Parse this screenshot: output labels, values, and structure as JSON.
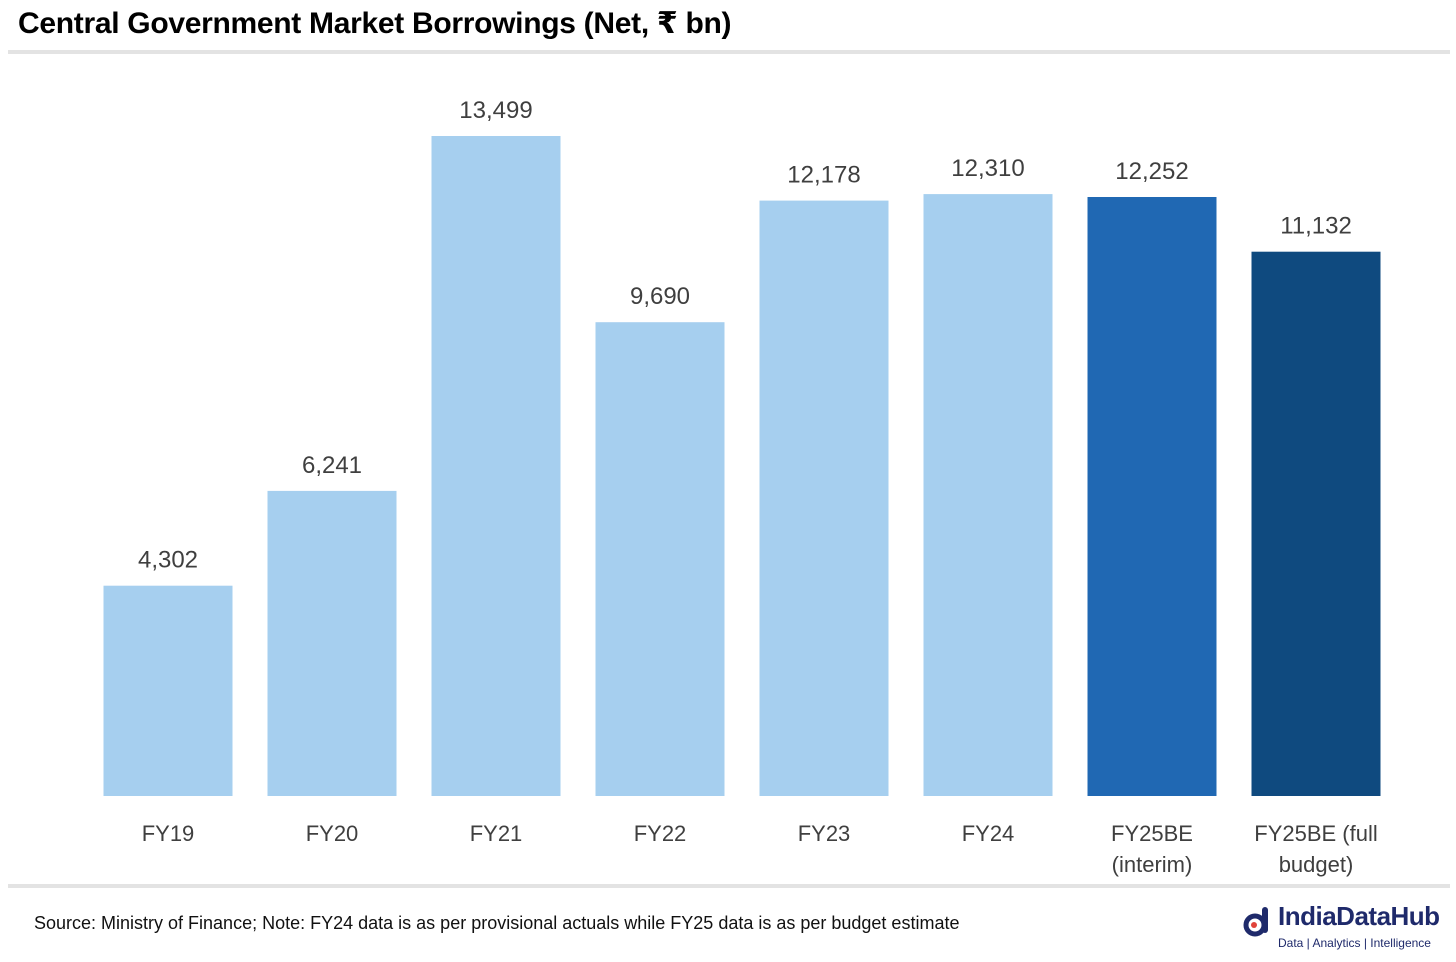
{
  "title": "Central Government Market Borrowings (Net, ₹ bn)",
  "chart_data": {
    "type": "bar",
    "title": "Central Government Market Borrowings (Net, ₹ bn)",
    "categories": [
      [
        "FY19"
      ],
      [
        "FY20"
      ],
      [
        "FY21"
      ],
      [
        "FY22"
      ],
      [
        "FY23"
      ],
      [
        "FY24"
      ],
      [
        "FY25BE",
        "(interim)"
      ],
      [
        "FY25BE (full",
        "budget)"
      ]
    ],
    "values": [
      4302,
      6241,
      13499,
      9690,
      12178,
      12310,
      12252,
      11132
    ],
    "value_labels": [
      "4,302",
      "6,241",
      "13,499",
      "9,690",
      "12,178",
      "12,310",
      "12,252",
      "11,132"
    ],
    "colors": [
      "#a6cfef",
      "#a6cfef",
      "#a6cfef",
      "#a6cfef",
      "#a6cfef",
      "#a6cfef",
      "#2068b3",
      "#0f4a7f"
    ],
    "ylim": [
      0,
      13499
    ],
    "grid": false,
    "legend": "none"
  },
  "footer": {
    "source": "Source: Ministry of Finance; Note: FY24 data is as per provisional actuals while FY25 data is as per budget estimate"
  },
  "logo": {
    "name": "IndiaDataHub",
    "tagline": "Data | Analytics | Intelligence",
    "color": "#1f2a6b"
  }
}
